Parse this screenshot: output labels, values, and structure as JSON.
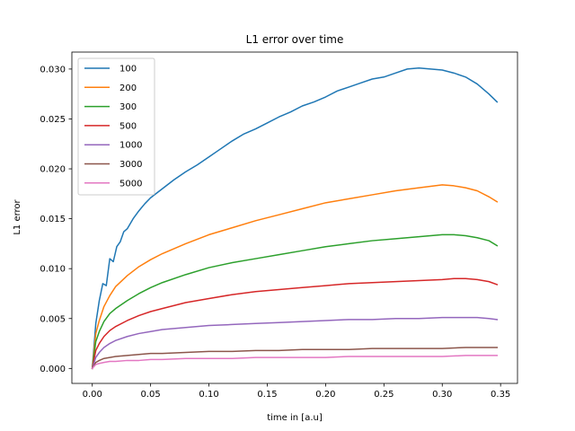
{
  "chart_data": {
    "type": "line",
    "title": "L1 error over time",
    "xlabel": "time in [a.u]",
    "ylabel": "L1 error",
    "xlim": [
      -0.0175,
      0.3645
    ],
    "ylim": [
      -0.0015,
      0.0317
    ],
    "xticks": [
      0.0,
      0.05,
      0.1,
      0.15,
      0.2,
      0.25,
      0.3,
      0.35
    ],
    "xtick_labels": [
      "0.00",
      "0.05",
      "0.10",
      "0.15",
      "0.20",
      "0.25",
      "0.30",
      "0.35"
    ],
    "yticks": [
      0.0,
      0.005,
      0.01,
      0.015,
      0.02,
      0.025,
      0.03
    ],
    "ytick_labels": [
      "0.000",
      "0.005",
      "0.010",
      "0.015",
      "0.020",
      "0.025",
      "0.030"
    ],
    "grid": false,
    "legend_position": "top-left",
    "series": [
      {
        "name": "100",
        "color": "#1f77b4",
        "x": [
          0.0,
          0.003,
          0.006,
          0.009,
          0.012,
          0.015,
          0.018,
          0.021,
          0.024,
          0.027,
          0.03,
          0.035,
          0.04,
          0.045,
          0.05,
          0.06,
          0.07,
          0.08,
          0.09,
          0.1,
          0.11,
          0.12,
          0.13,
          0.14,
          0.15,
          0.16,
          0.17,
          0.18,
          0.19,
          0.2,
          0.21,
          0.22,
          0.23,
          0.24,
          0.25,
          0.26,
          0.27,
          0.28,
          0.29,
          0.3,
          0.31,
          0.32,
          0.33,
          0.34,
          0.347
        ],
        "y": [
          0.0,
          0.0045,
          0.0068,
          0.0085,
          0.0083,
          0.011,
          0.0107,
          0.0122,
          0.0127,
          0.0137,
          0.014,
          0.015,
          0.0158,
          0.0165,
          0.0171,
          0.018,
          0.0189,
          0.0197,
          0.0204,
          0.0212,
          0.022,
          0.0228,
          0.0235,
          0.024,
          0.0246,
          0.0252,
          0.0257,
          0.0263,
          0.0267,
          0.0272,
          0.0278,
          0.0282,
          0.0286,
          0.029,
          0.0292,
          0.0296,
          0.03,
          0.0301,
          0.03,
          0.0299,
          0.0296,
          0.0292,
          0.0285,
          0.0275,
          0.0267
        ]
      },
      {
        "name": "200",
        "color": "#ff7f0e",
        "x": [
          0.0,
          0.003,
          0.006,
          0.01,
          0.015,
          0.02,
          0.03,
          0.04,
          0.05,
          0.06,
          0.08,
          0.1,
          0.12,
          0.14,
          0.16,
          0.18,
          0.2,
          0.22,
          0.24,
          0.26,
          0.28,
          0.3,
          0.31,
          0.32,
          0.33,
          0.34,
          0.347
        ],
        "y": [
          0.0,
          0.0035,
          0.0048,
          0.0062,
          0.0073,
          0.0082,
          0.0093,
          0.0102,
          0.0109,
          0.0115,
          0.0125,
          0.0134,
          0.0141,
          0.0148,
          0.0154,
          0.016,
          0.0166,
          0.017,
          0.0174,
          0.0178,
          0.0181,
          0.0184,
          0.0183,
          0.0181,
          0.0178,
          0.0172,
          0.0167
        ]
      },
      {
        "name": "300",
        "color": "#2ca02c",
        "x": [
          0.0,
          0.003,
          0.006,
          0.01,
          0.015,
          0.02,
          0.03,
          0.04,
          0.05,
          0.06,
          0.08,
          0.1,
          0.12,
          0.14,
          0.16,
          0.18,
          0.2,
          0.22,
          0.24,
          0.26,
          0.28,
          0.3,
          0.31,
          0.32,
          0.33,
          0.34,
          0.347
        ],
        "y": [
          0.0,
          0.0027,
          0.0037,
          0.0047,
          0.0055,
          0.006,
          0.0068,
          0.0075,
          0.0081,
          0.0086,
          0.0094,
          0.0101,
          0.0106,
          0.011,
          0.0114,
          0.0118,
          0.0122,
          0.0125,
          0.0128,
          0.013,
          0.0132,
          0.0134,
          0.0134,
          0.0133,
          0.0131,
          0.0128,
          0.0123
        ]
      },
      {
        "name": "500",
        "color": "#d62728",
        "x": [
          0.0,
          0.003,
          0.006,
          0.01,
          0.015,
          0.02,
          0.03,
          0.04,
          0.05,
          0.06,
          0.08,
          0.1,
          0.12,
          0.14,
          0.16,
          0.18,
          0.2,
          0.22,
          0.24,
          0.26,
          0.28,
          0.3,
          0.31,
          0.32,
          0.33,
          0.34,
          0.347
        ],
        "y": [
          0.0,
          0.0018,
          0.0025,
          0.0032,
          0.0038,
          0.0042,
          0.0048,
          0.0053,
          0.0057,
          0.006,
          0.0066,
          0.007,
          0.0074,
          0.0077,
          0.0079,
          0.0081,
          0.0083,
          0.0085,
          0.0086,
          0.0087,
          0.0088,
          0.0089,
          0.009,
          0.009,
          0.0089,
          0.0087,
          0.0084
        ]
      },
      {
        "name": "1000",
        "color": "#9467bd",
        "x": [
          0.0,
          0.003,
          0.006,
          0.01,
          0.015,
          0.02,
          0.03,
          0.04,
          0.05,
          0.06,
          0.08,
          0.1,
          0.12,
          0.14,
          0.16,
          0.18,
          0.2,
          0.22,
          0.24,
          0.26,
          0.28,
          0.3,
          0.31,
          0.32,
          0.33,
          0.34,
          0.347
        ],
        "y": [
          0.0,
          0.0011,
          0.0016,
          0.0021,
          0.0025,
          0.0028,
          0.0032,
          0.0035,
          0.0037,
          0.0039,
          0.0041,
          0.0043,
          0.0044,
          0.0045,
          0.0046,
          0.0047,
          0.0048,
          0.0049,
          0.0049,
          0.005,
          0.005,
          0.0051,
          0.0051,
          0.0051,
          0.0051,
          0.005,
          0.0049
        ]
      },
      {
        "name": "3000",
        "color": "#8c564b",
        "x": [
          0.0,
          0.003,
          0.006,
          0.01,
          0.015,
          0.02,
          0.03,
          0.04,
          0.05,
          0.06,
          0.08,
          0.1,
          0.12,
          0.14,
          0.16,
          0.18,
          0.2,
          0.22,
          0.24,
          0.26,
          0.28,
          0.3,
          0.32,
          0.34,
          0.347
        ],
        "y": [
          0.0,
          0.0006,
          0.0008,
          0.001,
          0.0011,
          0.0012,
          0.0013,
          0.0014,
          0.0015,
          0.0015,
          0.0016,
          0.0017,
          0.0017,
          0.0018,
          0.0018,
          0.0019,
          0.0019,
          0.0019,
          0.002,
          0.002,
          0.002,
          0.002,
          0.0021,
          0.0021,
          0.0021
        ]
      },
      {
        "name": "5000",
        "color": "#e377c2",
        "x": [
          0.0,
          0.003,
          0.006,
          0.01,
          0.015,
          0.02,
          0.03,
          0.04,
          0.05,
          0.06,
          0.08,
          0.1,
          0.12,
          0.14,
          0.16,
          0.18,
          0.2,
          0.22,
          0.24,
          0.26,
          0.28,
          0.3,
          0.32,
          0.34,
          0.347
        ],
        "y": [
          0.0,
          0.0004,
          0.0005,
          0.0006,
          0.0007,
          0.0007,
          0.0008,
          0.0008,
          0.0009,
          0.0009,
          0.001,
          0.001,
          0.001,
          0.0011,
          0.0011,
          0.0011,
          0.0011,
          0.0012,
          0.0012,
          0.0012,
          0.0012,
          0.0012,
          0.0013,
          0.0013,
          0.0013
        ]
      }
    ]
  }
}
